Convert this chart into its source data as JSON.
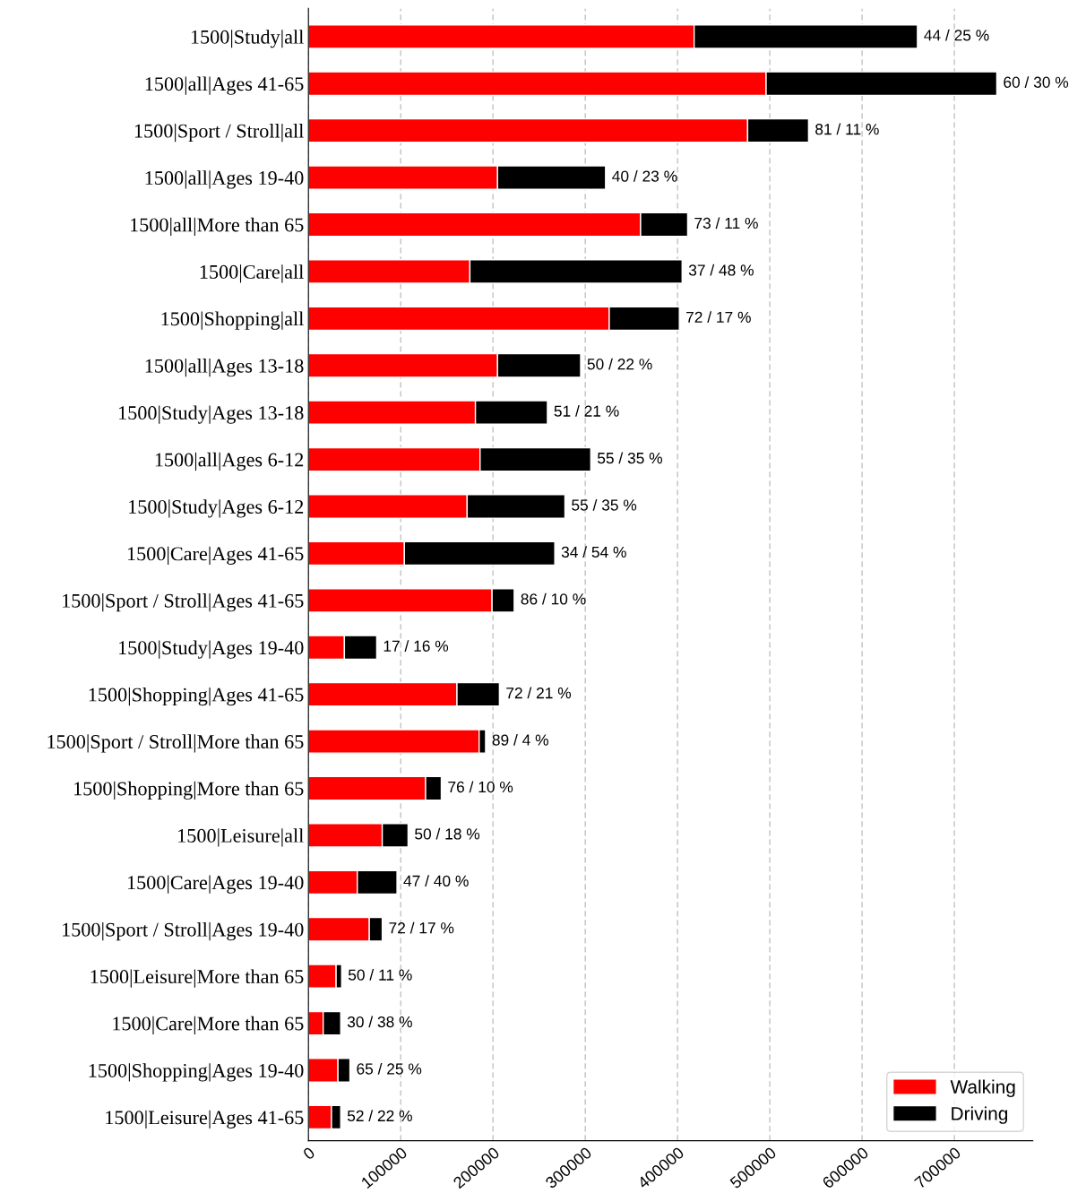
{
  "chart_data": {
    "type": "bar",
    "orientation": "horizontal",
    "stacked": true,
    "categories": [
      "1500|Study|all",
      "1500|all|Ages 41-65",
      "1500|Sport / Stroll|all",
      "1500|all|Ages 19-40",
      "1500|all|More than 65",
      "1500|Care|all",
      "1500|Shopping|all",
      "1500|all|Ages 13-18",
      "1500|Study|Ages 13-18",
      "1500|all|Ages 6-12",
      "1500|Study|Ages 6-12",
      "1500|Care|Ages 41-65",
      "1500|Sport / Stroll|Ages 41-65",
      "1500|Study|Ages 19-40",
      "1500|Shopping|Ages 41-65",
      "1500|Sport / Stroll|More than 65",
      "1500|Shopping|More than 65",
      "1500|Leisure|all",
      "1500|Care|Ages 19-40",
      "1500|Sport / Stroll|Ages 19-40",
      "1500|Leisure|More than 65",
      "1500|Care|More than 65",
      "1500|Shopping|Ages 19-40",
      "1500|Leisure|Ages 41-65"
    ],
    "series": [
      {
        "name": "Walking",
        "color": "#ff0000",
        "values": [
          418000,
          496000,
          476000,
          205000,
          360000,
          175000,
          326000,
          205000,
          181000,
          186000,
          172000,
          104000,
          199000,
          39000,
          161000,
          185000,
          127000,
          80000,
          53000,
          66000,
          30000,
          16000,
          32000,
          25000
        ]
      },
      {
        "name": "Driving",
        "color": "#000000",
        "values": [
          242000,
          250000,
          66000,
          117000,
          51000,
          230000,
          76000,
          90000,
          78000,
          120000,
          106000,
          163000,
          24000,
          35000,
          46000,
          7000,
          17000,
          28000,
          43000,
          14000,
          6000,
          19000,
          13000,
          10000
        ]
      }
    ],
    "annotations": [
      {
        "text": "44 / 25 %",
        "x": 660000,
        "y": "1500|Study|all"
      },
      {
        "text": "60 / 30 %",
        "x": 746000,
        "y": "1500|all|Ages 41-65"
      },
      {
        "text": "81 / 11 %",
        "x": 542000,
        "y": "1500|Sport / Stroll|all"
      },
      {
        "text": "40 / 23 %",
        "x": 322000,
        "y": "1500|all|Ages 19-40"
      },
      {
        "text": "73 / 11 %",
        "x": 411000,
        "y": "1500|all|More than 65"
      },
      {
        "text": "37 / 48 %",
        "x": 405000,
        "y": "1500|Care|all"
      },
      {
        "text": "72 / 17 %",
        "x": 402000,
        "y": "1500|Shopping|all"
      },
      {
        "text": "50 / 22 %",
        "x": 295000,
        "y": "1500|all|Ages 13-18"
      },
      {
        "text": "51 / 21 %",
        "x": 259000,
        "y": "1500|Study|Ages 13-18"
      },
      {
        "text": "55 / 35 %",
        "x": 306000,
        "y": "1500|all|Ages 6-12"
      },
      {
        "text": "55 / 35 %",
        "x": 278000,
        "y": "1500|Study|Ages 6-12"
      },
      {
        "text": "34 / 54 %",
        "x": 267000,
        "y": "1500|Care|Ages 41-65"
      },
      {
        "text": "86 / 10 %",
        "x": 223000,
        "y": "1500|Sport / Stroll|Ages 41-65"
      },
      {
        "text": "17 / 16 %",
        "x": 74000,
        "y": "1500|Study|Ages 19-40"
      },
      {
        "text": "72 / 21 %",
        "x": 207000,
        "y": "1500|Shopping|Ages 41-65"
      },
      {
        "text": "89 / 4 %",
        "x": 192000,
        "y": "1500|Sport / Stroll|More than 65"
      },
      {
        "text": "76 / 10 %",
        "x": 144000,
        "y": "1500|Shopping|More than 65"
      },
      {
        "text": "50 / 18 %",
        "x": 108000,
        "y": "1500|Leisure|all"
      },
      {
        "text": "47 / 40 %",
        "x": 96000,
        "y": "1500|Care|Ages 19-40"
      },
      {
        "text": "72 / 17 %",
        "x": 80000,
        "y": "1500|Sport / Stroll|Ages 19-40"
      },
      {
        "text": "50 / 11 %",
        "x": 36000,
        "y": "1500|Leisure|More than 65"
      },
      {
        "text": "30 / 38 %",
        "x": 35000,
        "y": "1500|Care|More than 65"
      },
      {
        "text": "65 / 25 %",
        "x": 45000,
        "y": "1500|Shopping|Ages 19-40"
      },
      {
        "text": "52 / 22 %",
        "x": 35000,
        "y": "1500|Leisure|Ages 41-65"
      }
    ],
    "xlim": [
      0,
      785000
    ],
    "xticks": [
      0,
      100000,
      200000,
      300000,
      400000,
      500000,
      600000,
      700000
    ],
    "grid": "x",
    "legend": "bottom right"
  }
}
